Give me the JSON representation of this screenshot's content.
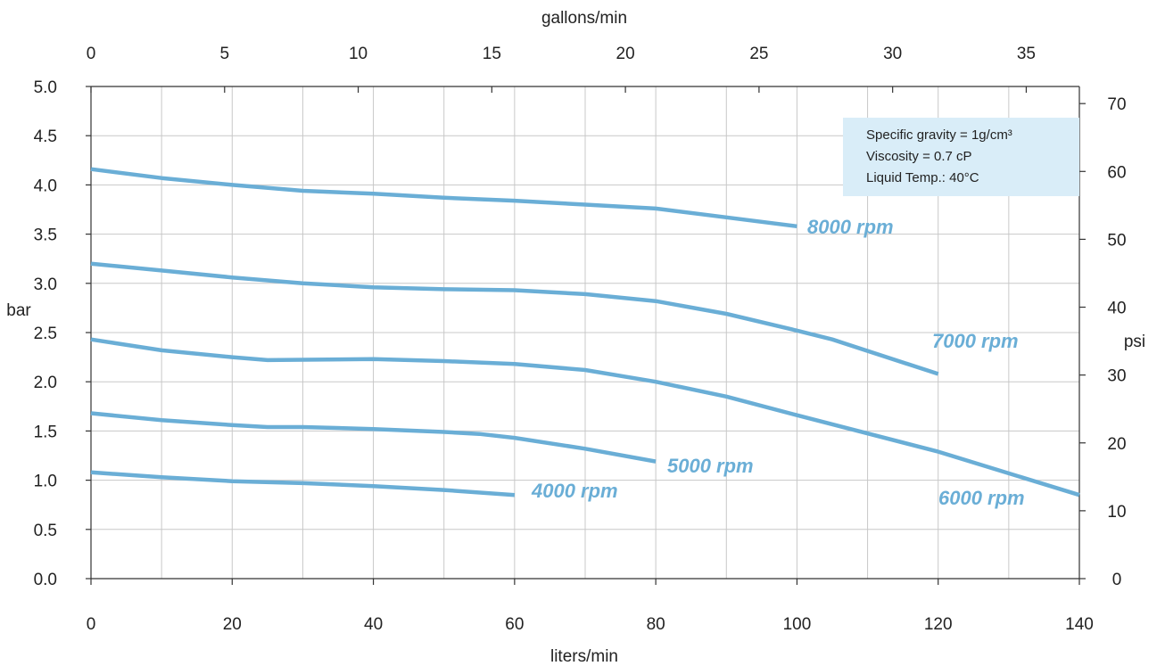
{
  "chart_data": {
    "type": "line",
    "x_bottom": {
      "label": "liters/min",
      "lim": [
        0,
        140
      ],
      "ticks": [
        0,
        20,
        40,
        60,
        80,
        100,
        120,
        140
      ]
    },
    "x_top": {
      "label": "gallons/min",
      "ticks": [
        0,
        5,
        10,
        15,
        20,
        25,
        30,
        35
      ]
    },
    "y_left": {
      "label": "bar",
      "lim": [
        0,
        5
      ],
      "ticks": [
        "0.0",
        "0.5",
        "1.0",
        "1.5",
        "2.0",
        "2.5",
        "3.0",
        "3.5",
        "4.0",
        "4.5",
        "5.0"
      ]
    },
    "y_right": {
      "label": "psi",
      "ticks": [
        0,
        10,
        20,
        30,
        40,
        50,
        60,
        70
      ]
    },
    "grid": true,
    "series_color": "#6aaed6",
    "note_color": "#d9edf8",
    "note": [
      "Specific gravity = 1g/cm³",
      "Viscosity = 0.7 cP",
      "Liquid Temp.: 40°C"
    ],
    "series": [
      {
        "name": "8000 rpm",
        "points": [
          [
            0,
            4.16
          ],
          [
            10,
            4.07
          ],
          [
            20,
            4.0
          ],
          [
            30,
            3.94
          ],
          [
            40,
            3.91
          ],
          [
            50,
            3.87
          ],
          [
            60,
            3.84
          ],
          [
            70,
            3.8
          ],
          [
            80,
            3.76
          ],
          [
            90,
            3.67
          ],
          [
            100,
            3.58
          ]
        ]
      },
      {
        "name": "7000 rpm",
        "points": [
          [
            0,
            3.2
          ],
          [
            10,
            3.13
          ],
          [
            20,
            3.06
          ],
          [
            30,
            3.0
          ],
          [
            40,
            2.96
          ],
          [
            50,
            2.94
          ],
          [
            60,
            2.93
          ],
          [
            70,
            2.89
          ],
          [
            80,
            2.82
          ],
          [
            90,
            2.69
          ],
          [
            100,
            2.52
          ],
          [
            105,
            2.43
          ],
          [
            120,
            2.08
          ]
        ]
      },
      {
        "name": "6000 rpm",
        "points": [
          [
            0,
            2.43
          ],
          [
            10,
            2.32
          ],
          [
            20,
            2.25
          ],
          [
            25,
            2.22
          ],
          [
            40,
            2.23
          ],
          [
            50,
            2.21
          ],
          [
            60,
            2.18
          ],
          [
            70,
            2.12
          ],
          [
            80,
            2.0
          ],
          [
            90,
            1.85
          ],
          [
            100,
            1.66
          ],
          [
            120,
            1.29
          ],
          [
            140,
            0.85
          ]
        ]
      },
      {
        "name": "5000 rpm",
        "points": [
          [
            0,
            1.68
          ],
          [
            10,
            1.61
          ],
          [
            20,
            1.56
          ],
          [
            25,
            1.54
          ],
          [
            30,
            1.54
          ],
          [
            40,
            1.52
          ],
          [
            50,
            1.49
          ],
          [
            55,
            1.47
          ],
          [
            60,
            1.43
          ],
          [
            70,
            1.32
          ],
          [
            80,
            1.19
          ]
        ]
      },
      {
        "name": "4000 rpm",
        "points": [
          [
            0,
            1.08
          ],
          [
            10,
            1.03
          ],
          [
            20,
            0.99
          ],
          [
            30,
            0.97
          ],
          [
            40,
            0.94
          ],
          [
            50,
            0.9
          ],
          [
            60,
            0.85
          ]
        ]
      }
    ]
  }
}
